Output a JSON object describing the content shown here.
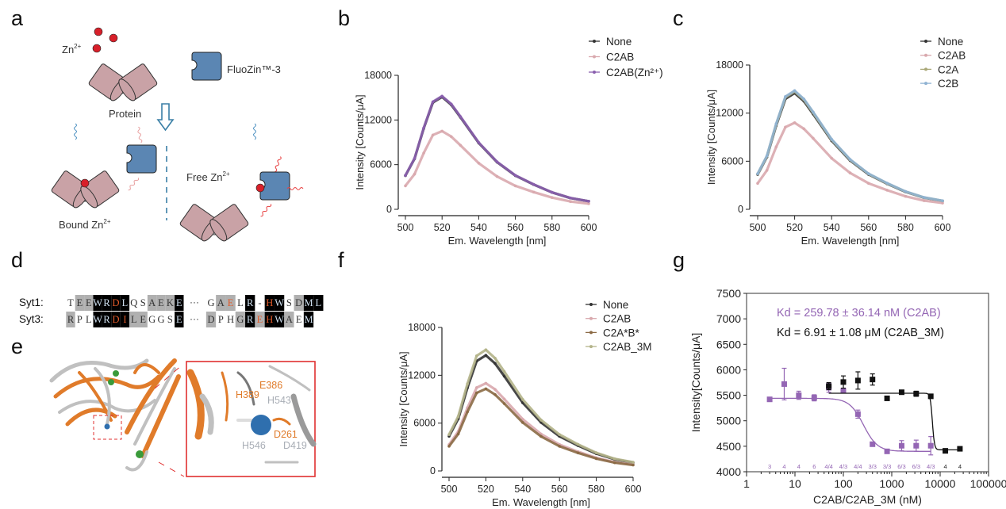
{
  "panels": {
    "a": {
      "label": "a",
      "zn_label": "Zn",
      "zn_sup": "2+",
      "dye_label": "FluoZin™-3",
      "protein_label": "Protein",
      "free_label": "Free Zn",
      "bound_label": "Bound  Zn",
      "colors": {
        "protein": "#c9a2a6",
        "dye": "#5b86b3",
        "zinc": "#d8202a",
        "arrow": "#3a7fa6"
      }
    },
    "b": {
      "label": "b"
    },
    "c": {
      "label": "c"
    },
    "d": {
      "label": "d",
      "ellipsis": "···",
      "rows": [
        {
          "name": "Syt1:",
          "left": "TEEWRDLQSAEKE",
          "left_shade": "wggkkkkwwgggk",
          "left_red": "0000010000000",
          "right": "GAELR-HWSDML",
          "right_shade": "wggwkwkkwgkk",
          "right_red": "001000100000"
        },
        {
          "name": "Syt3:",
          "left": "RPLWRDILEGGSE",
          "left_shade": "gwwkkkkggwwwk",
          "left_red": "0000011000000",
          "right": "DPHGREHWAEM",
          "right_shade": "gwwgkgkkgwk",
          "right_red": "00000110000"
        }
      ]
    },
    "e": {
      "label": "e",
      "residues": [
        {
          "name": "H389",
          "color": "#e07b2a"
        },
        {
          "name": "E386",
          "color": "#e07b2a"
        },
        {
          "name": "H543",
          "color": "#a9aeb6"
        },
        {
          "name": "D261",
          "color": "#e07b2a"
        },
        {
          "name": "H546",
          "color": "#a9aeb6"
        },
        {
          "name": "D419",
          "color": "#a9aeb6"
        }
      ]
    },
    "f": {
      "label": "f"
    },
    "g": {
      "label": "g"
    }
  },
  "chart_data": [
    {
      "panel": "b",
      "type": "line",
      "xlabel": "Em.  Wavelength [nm]",
      "ylabel": "Intensity [Counts/μA]",
      "xlim": [
        500,
        600
      ],
      "ylim": [
        0,
        18000
      ],
      "xticks": [
        500,
        520,
        540,
        560,
        580,
        600
      ],
      "yticks": [
        0,
        6000,
        12000,
        18000
      ],
      "legend_position": "top-right",
      "x": [
        500,
        505,
        510,
        515,
        520,
        525,
        530,
        540,
        550,
        560,
        570,
        580,
        590,
        600
      ],
      "series": [
        {
          "name": "None",
          "color": "#333333",
          "values": [
            4530,
            6800,
            10870,
            14350,
            15100,
            14040,
            12380,
            8910,
            6340,
            4530,
            3320,
            2270,
            1510,
            1090
          ]
        },
        {
          "name": "C2AB",
          "color": "#d9a9ae",
          "values": [
            3150,
            4730,
            7560,
            9980,
            10500,
            9770,
            8610,
            6200,
            4410,
            3150,
            2310,
            1580,
            1050,
            760
          ]
        },
        {
          "name": "C2AB(Zn²⁺)",
          "color": "#8a5fae",
          "values": [
            4560,
            6840,
            10940,
            14440,
            15200,
            14140,
            12460,
            8970,
            6380,
            4560,
            3340,
            2280,
            1520,
            1090
          ]
        }
      ]
    },
    {
      "panel": "c",
      "type": "line",
      "xlabel": "Em.  Wavelength [nm]",
      "ylabel": "Intensity [Counts/μA]",
      "xlim": [
        500,
        600
      ],
      "ylim": [
        0,
        18000
      ],
      "xticks": [
        500,
        520,
        540,
        560,
        580,
        600
      ],
      "yticks": [
        0,
        6000,
        12000,
        18000
      ],
      "legend_position": "top-right",
      "x": [
        500,
        505,
        510,
        515,
        520,
        525,
        530,
        540,
        550,
        560,
        570,
        580,
        590,
        600
      ],
      "series": [
        {
          "name": "None",
          "color": "#333333",
          "values": [
            4350,
            6530,
            10440,
            13780,
            14500,
            13490,
            11890,
            8560,
            6090,
            4350,
            3190,
            2180,
            1450,
            1040
          ]
        },
        {
          "name": "C2AB",
          "color": "#d9a9ae",
          "values": [
            3240,
            4860,
            7780,
            10260,
            10800,
            10040,
            8860,
            6370,
            4540,
            3240,
            2380,
            1620,
            1080,
            780
          ]
        },
        {
          "name": "C2A",
          "color": "#aaa878",
          "values": [
            4410,
            6620,
            10580,
            13970,
            14700,
            13670,
            12050,
            8670,
            6170,
            4410,
            3230,
            2210,
            1470,
            1060
          ]
        },
        {
          "name": "C2B",
          "color": "#8fb2d2",
          "values": [
            4440,
            6660,
            10660,
            14060,
            14800,
            13760,
            12140,
            8730,
            6220,
            4440,
            3260,
            2220,
            1480,
            1070
          ]
        }
      ]
    },
    {
      "panel": "f",
      "type": "line",
      "xlabel": "Em.  Wavelength [nm]",
      "ylabel": "Intensity [Counts/μA]",
      "xlim": [
        500,
        600
      ],
      "ylim": [
        0,
        18000
      ],
      "xticks": [
        500,
        520,
        540,
        560,
        580,
        600
      ],
      "yticks": [
        0,
        6000,
        12000,
        18000
      ],
      "legend_position": "top-right",
      "x": [
        500,
        505,
        510,
        515,
        520,
        525,
        530,
        540,
        550,
        560,
        570,
        580,
        590,
        600
      ],
      "series": [
        {
          "name": "None",
          "color": "#333333",
          "values": [
            4350,
            6530,
            10440,
            13780,
            14500,
            13490,
            11890,
            8560,
            6090,
            4350,
            3190,
            2180,
            1450,
            1040
          ]
        },
        {
          "name": "C2AB",
          "color": "#d9a9ae",
          "values": [
            3300,
            4950,
            7920,
            10450,
            11000,
            10230,
            9020,
            6490,
            4620,
            3300,
            2420,
            1650,
            1100,
            790
          ]
        },
        {
          "name": "C2A*B*",
          "color": "#8b6a45",
          "values": [
            3090,
            4640,
            7420,
            9790,
            10300,
            9580,
            8450,
            6080,
            4330,
            3090,
            2270,
            1550,
            1030,
            740
          ]
        },
        {
          "name": "C2AB_3M",
          "color": "#b4b48a",
          "values": [
            4560,
            6840,
            10940,
            14440,
            15200,
            14140,
            12460,
            8970,
            6380,
            4560,
            3340,
            2280,
            1520,
            1090
          ]
        }
      ]
    },
    {
      "panel": "g",
      "type": "scatter",
      "xlabel": "C2AB/C2AB_3M (nM)",
      "ylabel": "Intensity[Counts/μA]",
      "xscale": "log",
      "xlim": [
        1,
        100000
      ],
      "ylim": [
        4000,
        7500
      ],
      "xticks": [
        1,
        10,
        100,
        1000,
        10000,
        100000
      ],
      "yticks": [
        4000,
        4500,
        5000,
        5500,
        6000,
        6500,
        7000,
        7500
      ],
      "annotations": [
        {
          "text": "Kd = 259.78 ± 36.14 nM (C2AB)",
          "color": "#9466b4"
        },
        {
          "text": "Kd = 6.91 ± 1.08 μM (C2AB_3M)",
          "color": "#111111"
        }
      ],
      "n_labels": [
        "3",
        "4",
        "4",
        "6",
        "4/4",
        "4/3",
        "4/4",
        "3/3",
        "3/3",
        "6/3",
        "6/3",
        "4/3",
        "4",
        "4"
      ],
      "n_label_x": [
        3,
        6,
        12,
        25,
        50,
        100,
        200,
        400,
        800,
        1600,
        3200,
        6400,
        12800,
        25600
      ],
      "series": [
        {
          "id": "C2AB",
          "color": "#9466b4",
          "x": [
            3,
            6,
            12,
            25,
            50,
            100,
            200,
            400,
            800,
            1600,
            3200,
            6400
          ],
          "y": [
            5420,
            5720,
            5500,
            5450,
            5650,
            5590,
            5130,
            4540,
            4400,
            4510,
            4510,
            4510
          ],
          "err": [
            0,
            310,
            80,
            60,
            90,
            40,
            80,
            30,
            20,
            100,
            110,
            180
          ],
          "fit": {
            "top": 5440,
            "bottom": 4400,
            "kd": 259.78,
            "hill": 3
          }
        },
        {
          "id": "C2AB_3M",
          "color": "#111111",
          "x": [
            50,
            100,
            200,
            400,
            800,
            1600,
            3200,
            6400,
            12800,
            25600
          ],
          "y": [
            5680,
            5760,
            5790,
            5810,
            5440,
            5560,
            5530,
            5480,
            4410,
            4450
          ],
          "err": [
            70,
            120,
            170,
            110,
            0,
            20,
            50,
            30,
            20,
            20
          ],
          "fit": {
            "top": 5540,
            "bottom": 4430,
            "kd": 6910,
            "hill": 20
          }
        }
      ]
    }
  ]
}
